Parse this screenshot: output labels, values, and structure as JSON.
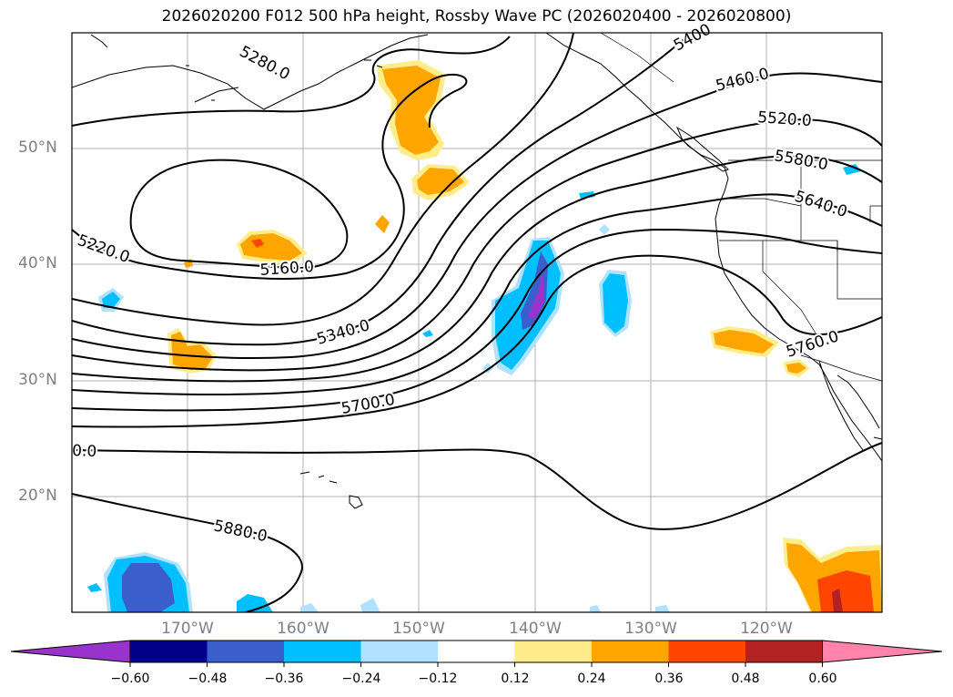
{
  "title": "2026020200 F012 500 hPa height, Rossby Wave PC (2026020400 - 2026020800)",
  "lat_labels": [
    "50°N",
    "40°N",
    "30°N",
    "20°N"
  ],
  "lon_labels": [
    "170°W",
    "160°W",
    "150°W",
    "140°W",
    "130°W",
    "120°W"
  ],
  "contour_labels": [
    "5280.0",
    "5400",
    "5460.0",
    "5520.0",
    "5580.0",
    "5640.0",
    "5220.0",
    "5160.0",
    "5340.0",
    "5760.0",
    "5700.0",
    "0.0",
    "5880.0"
  ],
  "colorbar": {
    "ticks": [
      "−0.60",
      "−0.48",
      "−0.36",
      "−0.24",
      "−0.12",
      "0.12",
      "0.24",
      "0.36",
      "0.48",
      "0.60"
    ],
    "colors": [
      "#9933cc",
      "#00008b",
      "#3a5fcd",
      "#00bfff",
      "#b0e2ff",
      "#ffffff",
      "#ffec8b",
      "#ffa500",
      "#ff4500",
      "#b22222",
      "#ff83aa"
    ]
  },
  "shading_colors": {
    "orange": "#ffa500",
    "light_yellow": "#ffec8b",
    "red_orange": "#ff4500",
    "dark_red": "#b22222",
    "cyan": "#00bfff",
    "light_cyan": "#b0e2ff",
    "royal_blue": "#3a5fcd",
    "purple": "#9933cc"
  }
}
